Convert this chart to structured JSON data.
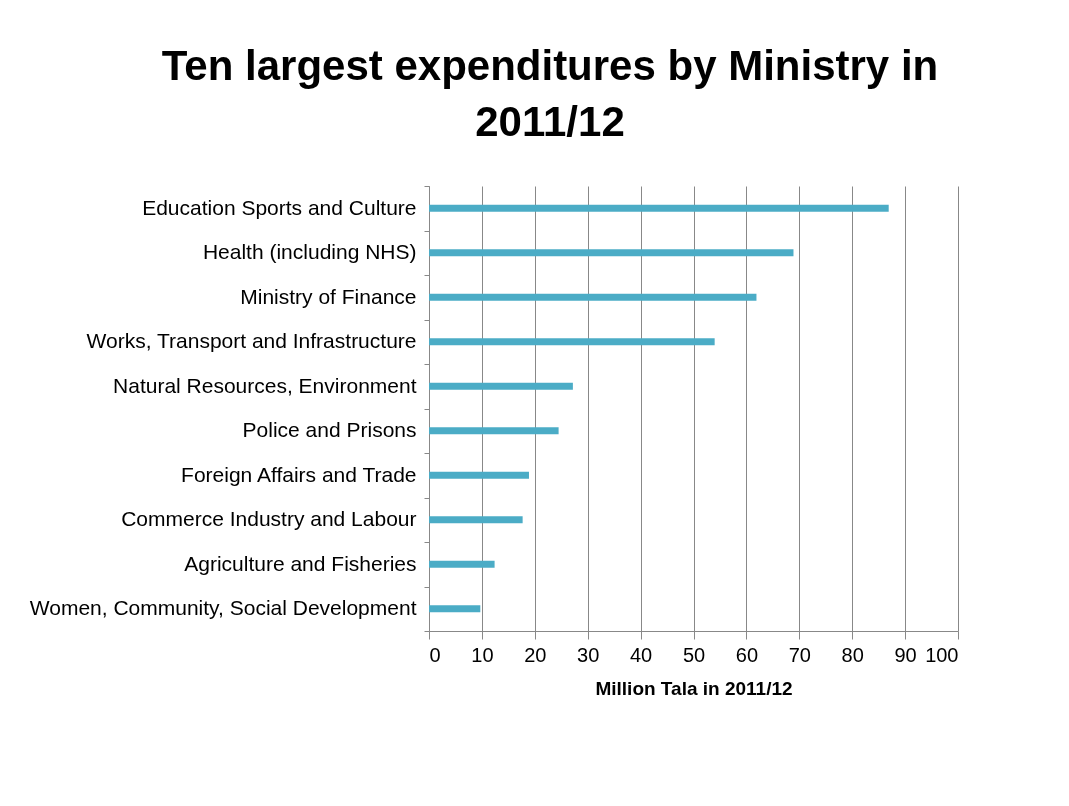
{
  "chart_data": {
    "type": "bar",
    "orientation": "horizontal",
    "title": "Ten largest expenditures by Ministry in 2011/12",
    "xlabel": "Million Tala in 2011/12",
    "categories": [
      "Education Sports and Culture",
      "Health (including NHS)",
      "Ministry of Finance",
      "Works, Transport and Infrastructure",
      "Natural Resources, Environment",
      "Police and Prisons",
      "Foreign Affairs and Trade",
      "Commerce Industry and Labour",
      "Agriculture and Fisheries",
      "Women, Community, Social Development"
    ],
    "values": [
      86.9,
      68.9,
      61.9,
      54.0,
      27.2,
      24.5,
      18.9,
      17.7,
      12.4,
      9.7
    ],
    "color": "#4bacc6",
    "xlim": [
      0,
      100
    ],
    "xticks": [
      0,
      10,
      20,
      30,
      40,
      50,
      60,
      70,
      80,
      90,
      100
    ],
    "grid": "x"
  }
}
